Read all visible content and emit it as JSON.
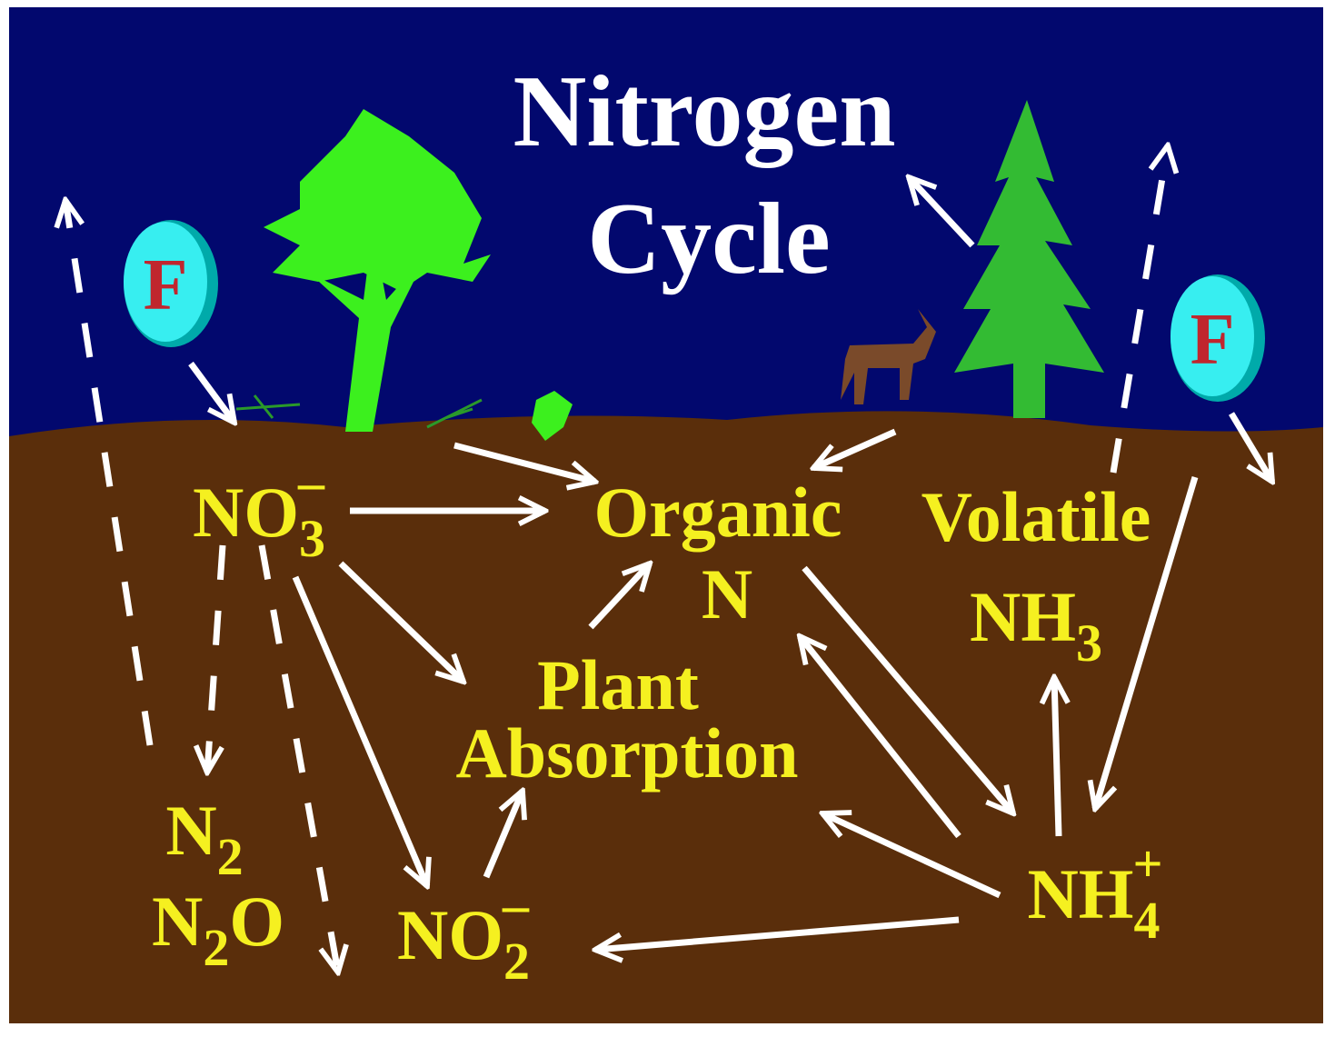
{
  "title": [
    "Nitrogen",
    "Cycle"
  ],
  "fertilizer": [
    "F",
    "F"
  ],
  "nodes": [
    {
      "lines": [
        [
          {
            "text": "NO"
          },
          {
            "sub": "3"
          },
          {
            "sup": "–"
          }
        ]
      ]
    },
    {
      "lines": [
        [
          {
            "text": "Organic"
          }
        ],
        [
          {
            "text": "N"
          }
        ]
      ]
    },
    {
      "lines": [
        [
          {
            "text": "Volatile"
          }
        ],
        [
          {
            "text": "NH"
          },
          {
            "sub": "3"
          }
        ]
      ]
    },
    {
      "lines": [
        [
          {
            "text": "Plant"
          }
        ],
        [
          {
            "text": "Absorption"
          }
        ]
      ]
    },
    {
      "lines": [
        [
          {
            "text": "N"
          },
          {
            "sub": "2"
          }
        ],
        [
          {
            "text": "N"
          },
          {
            "sub": "2"
          },
          {
            "text": "O"
          }
        ]
      ]
    },
    {
      "lines": [
        [
          {
            "text": "NO"
          },
          {
            "sub": "2"
          },
          {
            "sup": "–"
          }
        ]
      ]
    },
    {
      "lines": [
        [
          {
            "text": "NH"
          },
          {
            "sub": "4"
          },
          {
            "sup": "+"
          }
        ]
      ]
    }
  ]
}
